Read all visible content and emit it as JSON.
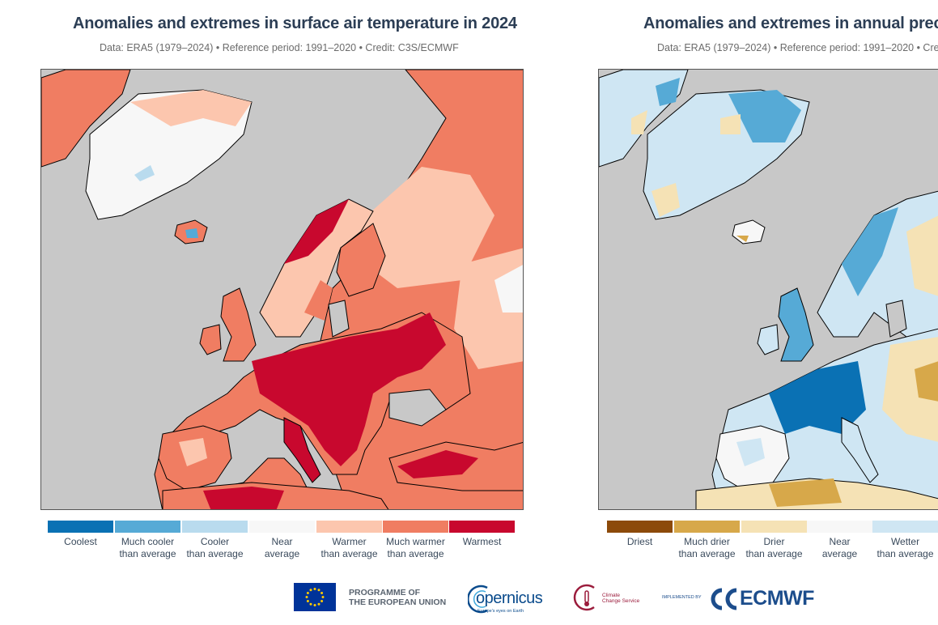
{
  "temperature_panel": {
    "title": "Anomalies and extremes in surface air temperature in 2024",
    "subtitle": "Data: ERA5 (1979–2024) • Reference period: 1991–2020 • Credit: C3S/ECMWF",
    "legend": [
      {
        "label": "Coolest",
        "color": "#0a71b4"
      },
      {
        "label": "Much cooler\nthan average",
        "color": "#56aad6"
      },
      {
        "label": "Cooler\nthan average",
        "color": "#b9dbee"
      },
      {
        "label": "Near\naverage",
        "color": "#f7f7f7"
      },
      {
        "label": "Warmer\nthan average",
        "color": "#fcc6ae"
      },
      {
        "label": "Much warmer\nthan average",
        "color": "#f07d62"
      },
      {
        "label": "Warmest",
        "color": "#c8082e"
      }
    ]
  },
  "precipitation_panel": {
    "title": "Anomalies and extremes in annual precipit",
    "subtitle": "Data: ERA5 (1979–2024) • Reference period: 1991–2020 • Cre",
    "legend": [
      {
        "label": "Driest",
        "color": "#8c4a0a"
      },
      {
        "label": "Much drier\nthan average",
        "color": "#d7a84a"
      },
      {
        "label": "Drier\nthan average",
        "color": "#f5e2b5"
      },
      {
        "label": "Near\naverage",
        "color": "#f7f7f7"
      },
      {
        "label": "Wetter\nthan average",
        "color": "#cfe6f3"
      }
    ]
  },
  "map_colors": {
    "ocean": "#c8c8c8",
    "coast": "#000000"
  },
  "footer": {
    "programme": "PROGRAMME OF\nTHE EUROPEAN UNION",
    "copernicus": "opernicus",
    "copernicus_tagline": "Europe's eyes on Earth",
    "c3s": "Climate\nChange Service",
    "implemented_by": "IMPLEMENTED BY",
    "ecmwf": "ECMWF"
  }
}
